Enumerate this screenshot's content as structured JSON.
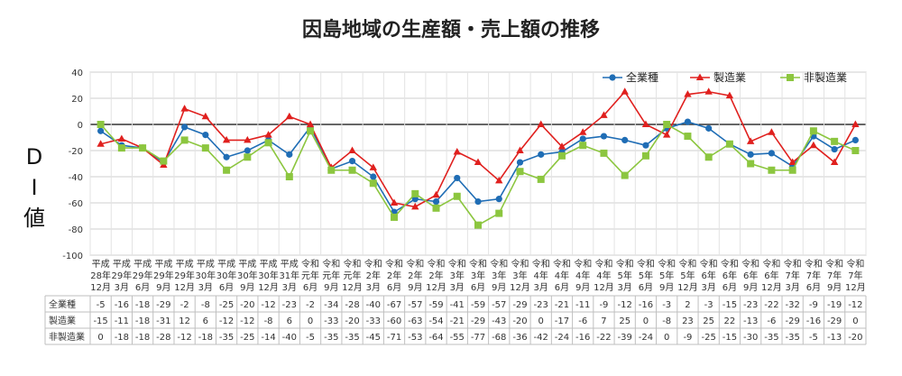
{
  "chart_data": {
    "type": "line",
    "title": "因島地域の生産額・売上額の推移",
    "ylabel": "DI値",
    "ylim": [
      -100,
      40
    ],
    "yticks": [
      40,
      20,
      0,
      -20,
      -40,
      -60,
      -80,
      -100
    ],
    "grid": true,
    "legend_position": "top-right",
    "categories": [
      [
        "平成",
        "28年",
        "12月"
      ],
      [
        "平成",
        "29年",
        "3月"
      ],
      [
        "平成",
        "29年",
        "6月"
      ],
      [
        "平成",
        "29年",
        "9月"
      ],
      [
        "平成",
        "29年",
        "12月"
      ],
      [
        "平成",
        "30年",
        "3月"
      ],
      [
        "平成",
        "30年",
        "6月"
      ],
      [
        "平成",
        "30年",
        "9月"
      ],
      [
        "平成",
        "30年",
        "12月"
      ],
      [
        "平成",
        "31年",
        "3月"
      ],
      [
        "令和",
        "元年",
        "6月"
      ],
      [
        "令和",
        "元年",
        "9月"
      ],
      [
        "令和",
        "元年",
        "12月"
      ],
      [
        "令和",
        "2年",
        "3月"
      ],
      [
        "令和",
        "2年",
        "6月"
      ],
      [
        "令和",
        "2年",
        "9月"
      ],
      [
        "令和",
        "2年",
        "12月"
      ],
      [
        "令和",
        "3年",
        "3月"
      ],
      [
        "令和",
        "3年",
        "6月"
      ],
      [
        "令和",
        "3年",
        "9月"
      ],
      [
        "令和",
        "3年",
        "12月"
      ],
      [
        "令和",
        "4年",
        "3月"
      ],
      [
        "令和",
        "4年",
        "6月"
      ],
      [
        "令和",
        "4年",
        "9月"
      ],
      [
        "令和",
        "4年",
        "12月"
      ],
      [
        "令和",
        "5年",
        "3月"
      ],
      [
        "令和",
        "5年",
        "6月"
      ],
      [
        "令和",
        "5年",
        "9月"
      ],
      [
        "令和",
        "5年",
        "12月"
      ],
      [
        "令和",
        "6年",
        "3月"
      ],
      [
        "令和",
        "6年",
        "6月"
      ],
      [
        "令和",
        "6年",
        "9月"
      ],
      [
        "令和",
        "6年",
        "12月"
      ],
      [
        "令和",
        "7年",
        "3月"
      ],
      [
        "令和",
        "7年",
        "6月"
      ],
      [
        "令和",
        "7年",
        "9月"
      ],
      [
        "令和",
        "7年",
        "12月"
      ]
    ],
    "series": [
      {
        "name": "全業種",
        "color": "#1f6db5",
        "marker": "circle",
        "values": [
          -5,
          -16,
          -18,
          -29,
          -2,
          -8,
          -25,
          -20,
          -12,
          -23,
          -2,
          -34,
          -28,
          -40,
          -67,
          -57,
          -59,
          -41,
          -59,
          -57,
          -29,
          -23,
          -21,
          -11,
          -9,
          -12,
          -16,
          -3,
          2,
          -3,
          -15,
          -23,
          -22,
          -32,
          -9,
          -19,
          -12
        ]
      },
      {
        "name": "製造業",
        "color": "#e0201e",
        "marker": "triangle",
        "values": [
          -15,
          -11,
          -18,
          -31,
          12,
          6,
          -12,
          -12,
          -8,
          6,
          0,
          -33,
          -20,
          -33,
          -60,
          -63,
          -54,
          -21,
          -29,
          -43,
          -20,
          0,
          -17,
          -6,
          7,
          25,
          0,
          -8,
          23,
          25,
          22,
          -13,
          -6,
          -29,
          -16,
          -29,
          0
        ]
      },
      {
        "name": "非製造業",
        "color": "#8cc63f",
        "marker": "square",
        "values": [
          0,
          -18,
          -18,
          -28,
          -12,
          -18,
          -35,
          -25,
          -14,
          -40,
          -5,
          -35,
          -35,
          -45,
          -71,
          -53,
          -64,
          -55,
          -77,
          -68,
          -36,
          -42,
          -24,
          -16,
          -22,
          -39,
          -24,
          0,
          -9,
          -25,
          -15,
          -30,
          -35,
          -35,
          -5,
          -13,
          -20
        ]
      }
    ]
  }
}
